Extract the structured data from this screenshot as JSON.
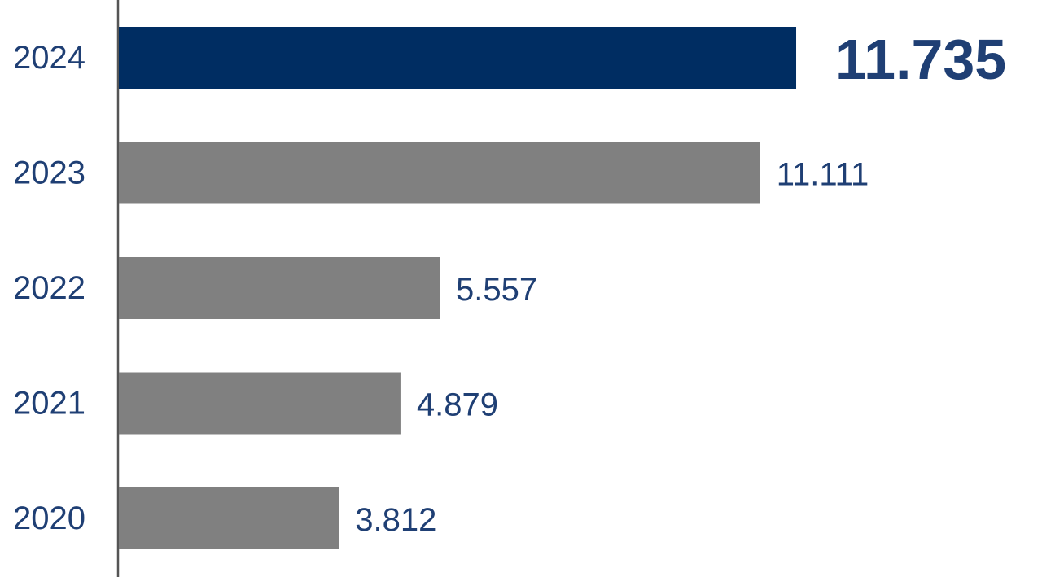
{
  "chart_data": {
    "type": "barh",
    "categories": [
      "2024",
      "2023",
      "2022",
      "2021",
      "2020"
    ],
    "values": [
      11.735,
      11.111,
      5.557,
      4.879,
      3.812
    ],
    "colors": [
      "#002d62",
      "#808080",
      "#808080",
      "#808080",
      "#808080"
    ],
    "highlight": 0
  }
}
